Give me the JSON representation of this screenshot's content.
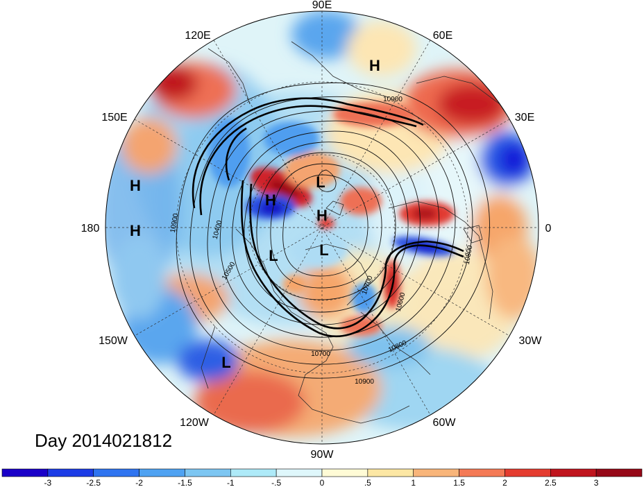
{
  "map": {
    "projection": "north-polar-stereographic",
    "longitude_labels": [
      {
        "name": "lon-label-90e",
        "text": "90E"
      },
      {
        "name": "lon-label-60e",
        "text": "60E"
      },
      {
        "name": "lon-label-30e",
        "text": "30E"
      },
      {
        "name": "lon-label-0",
        "text": "0"
      },
      {
        "name": "lon-label-30w",
        "text": "30W"
      },
      {
        "name": "lon-label-60w",
        "text": "60W"
      },
      {
        "name": "lon-label-90w",
        "text": "90W"
      },
      {
        "name": "lon-label-120w",
        "text": "120W"
      },
      {
        "name": "lon-label-150w",
        "text": "150W"
      },
      {
        "name": "lon-label-180",
        "text": "180"
      },
      {
        "name": "lon-label-150e",
        "text": "150E"
      },
      {
        "name": "lon-label-120e",
        "text": "120E"
      }
    ],
    "pressure_markers": [
      "H",
      "H",
      "H",
      "H",
      "H",
      "L",
      "L",
      "L",
      "L"
    ],
    "contour_labels": [
      "10900",
      "10400",
      "10500",
      "10700",
      "10600",
      "10800",
      "10700",
      "10800",
      "10900",
      "10900"
    ],
    "colors": {
      "deep_blue": "#1818d8",
      "blue": "#2a62e8",
      "mid_blue": "#4f9ef0",
      "light_blue": "#8ccdf4",
      "pale_cyan": "#c8f0fa",
      "pale_yellow": "#fff9d4",
      "tan": "#fbdc96",
      "orange": "#f6a66a",
      "red_orange": "#ee7055",
      "red": "#e23a32",
      "dark_red": "#b0141f"
    }
  },
  "title": {
    "day_label": "Day 2014021812"
  },
  "colorbar": {
    "ticks": [
      "-3",
      "-2.5",
      "-2",
      "-1.5",
      "-1",
      "-.5",
      "0",
      ".5",
      "1",
      "1.5",
      "2",
      "2.5",
      "3"
    ],
    "colors": [
      "#1a00c8",
      "#1c3ce6",
      "#2f74f0",
      "#4fa2f2",
      "#7dc6f2",
      "#aeeaf8",
      "#dff7fb",
      "#fffbd6",
      "#fce7a4",
      "#f8b57a",
      "#f47a56",
      "#e43c30",
      "#c0151e",
      "#960818"
    ]
  }
}
